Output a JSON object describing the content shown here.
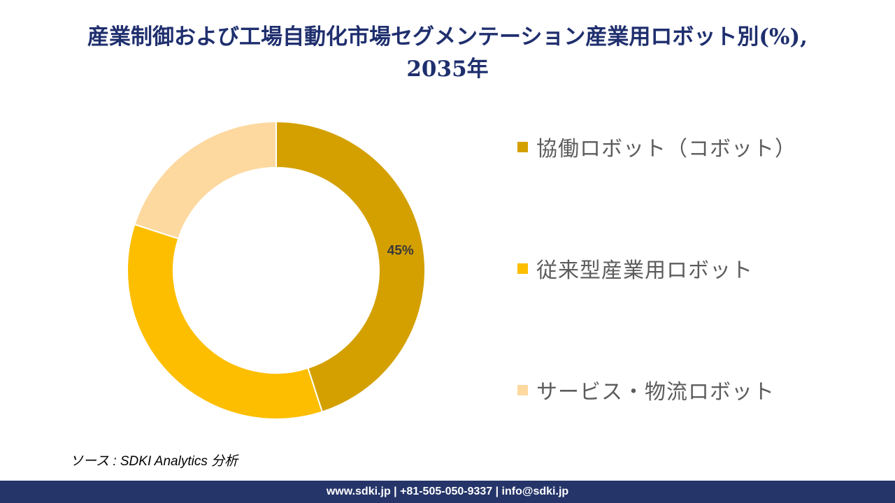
{
  "title": {
    "line1": "産業制御および工場自動化市場セグメンテーション産業用ロボット別(%),",
    "line2": "2035年"
  },
  "chart_data": {
    "type": "pie",
    "donut": true,
    "title": "産業制御および工場自動化市場セグメンテーション産業用ロボット別(%), 2035年",
    "series": [
      {
        "name": "協働ロボット（コボット）",
        "value": 45,
        "color": "#d4a000",
        "label": "45%"
      },
      {
        "name": "従来型産業用ロボット",
        "value": 35,
        "color": "#fdbe00",
        "label": ""
      },
      {
        "name": "サービス・物流ロボット",
        "value": 20,
        "color": "#fdd9a0",
        "label": ""
      }
    ],
    "legend_position": "right"
  },
  "source": "ソース : SDKI Analytics 分析",
  "footer": "www.sdki.jp | +81-505-050-9337 | info@sdki.jp"
}
